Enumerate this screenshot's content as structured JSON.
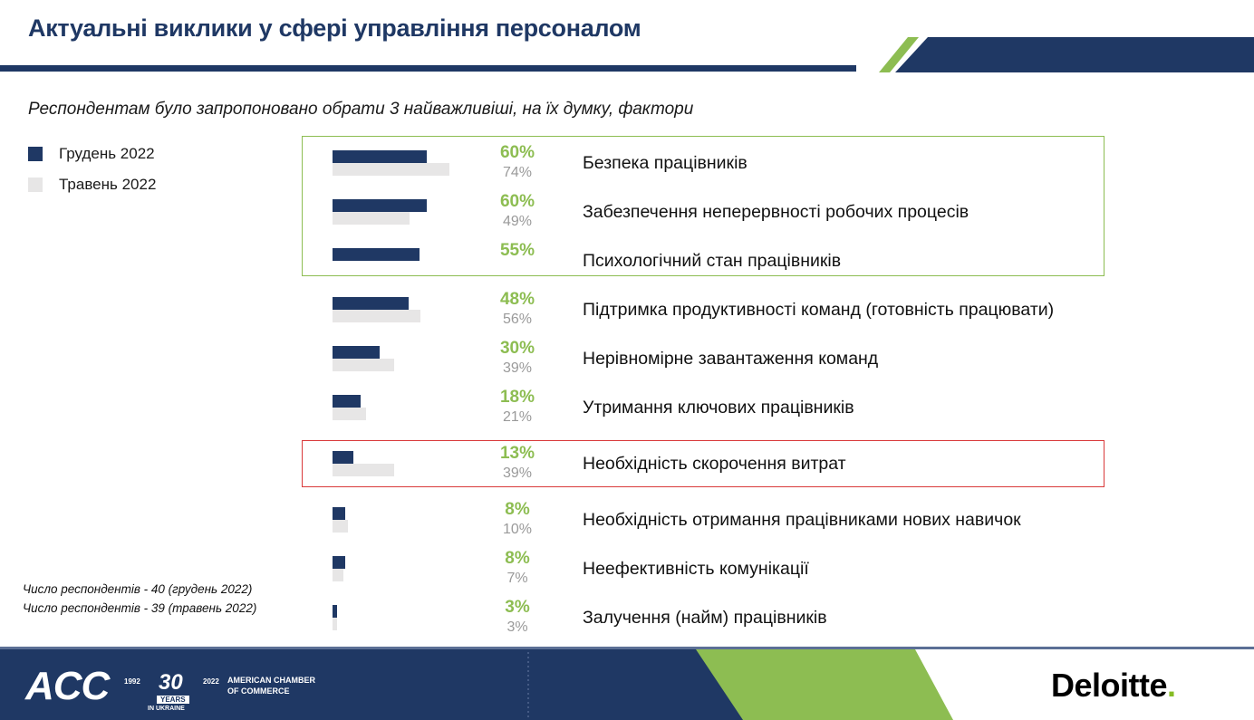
{
  "title": "Актуальні виклики у сфері управління персоналом",
  "subtitle": "Респондентам було запропоновано обрати 3 найважливіші, на їх думку, фактори",
  "legend": [
    {
      "label": "Грудень 2022",
      "color": "#1f3864"
    },
    {
      "label": "Травень 2022",
      "color": "#e7e6e6"
    }
  ],
  "notes": [
    "Число респондентів - 40 (грудень 2022)",
    "Число респондентів - 39 (травень 2022)"
  ],
  "footer": {
    "acc": "ACC",
    "years_left": "1992",
    "years_num": "30",
    "years_right": "2022",
    "years_word": "YEARS",
    "in_ukraine": "IN UKRAINE",
    "chamber_line1": "AMERICAN CHAMBER",
    "chamber_line2": "OF COMMERCE",
    "deloitte": "Deloitte",
    "deloitte_dot": "."
  },
  "colors": {
    "navy": "#1f3864",
    "green": "#8dbd52",
    "grey": "#e7e6e6",
    "red": "#d9393a"
  },
  "chart_data": {
    "type": "bar",
    "orientation": "horizontal",
    "categories": [
      "Безпека працівників",
      "Забезпечення неперервності робочих процесів",
      "Психологічний стан працівників",
      "Підтримка продуктивності команд (готовність працювати)",
      "Нерівномірне завантаження команд",
      "Утримання ключових працівників",
      "Необхідність скорочення витрат",
      "Необхідність отримання працівниками нових навичок",
      "Неефективність комунікації",
      "Залучення (найм) працівників"
    ],
    "series": [
      {
        "name": "Грудень 2022",
        "values": [
          60,
          60,
          55,
          48,
          30,
          18,
          13,
          8,
          8,
          3
        ]
      },
      {
        "name": "Травень 2022",
        "values": [
          74,
          49,
          null,
          56,
          39,
          21,
          39,
          10,
          7,
          3
        ]
      }
    ],
    "dec_labels": [
      "60%",
      "60%",
      "55%",
      "48%",
      "30%",
      "18%",
      "13%",
      "8%",
      "8%",
      "3%"
    ],
    "may_labels": [
      "74%",
      "49%",
      "",
      "56%",
      "39%",
      "21%",
      "39%",
      "10%",
      "7%",
      "3%"
    ],
    "xlim": [
      0,
      100
    ],
    "highlight_green": [
      0,
      1,
      2
    ],
    "highlight_red": [
      6
    ]
  }
}
